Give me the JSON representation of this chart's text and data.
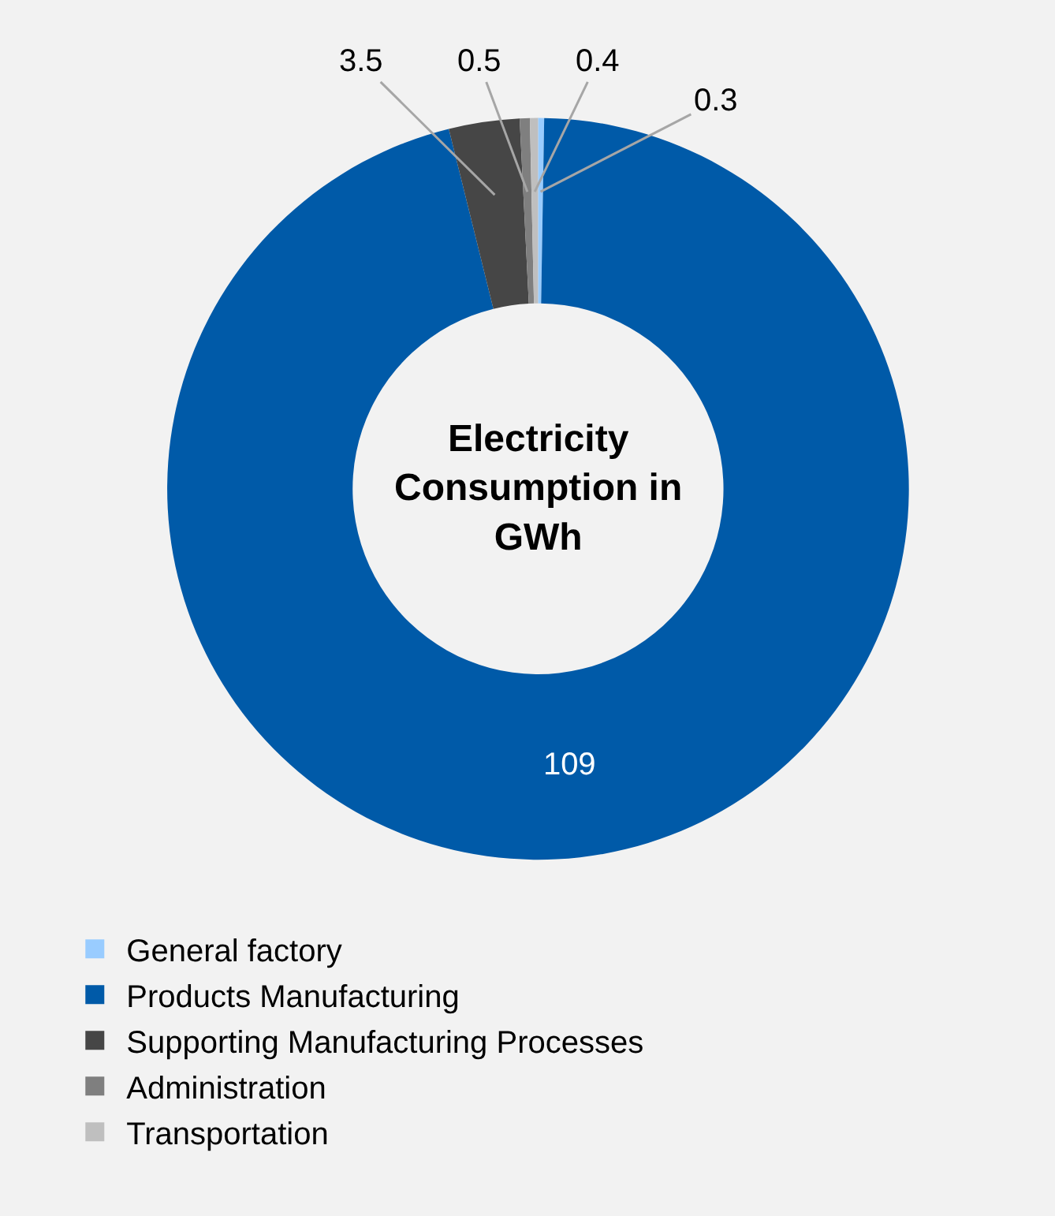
{
  "chart_data": {
    "type": "donut",
    "title": "Electricity Consumption in GWh",
    "categories": [
      "General factory",
      "Products Manufacturing",
      "Supporting Manufacturing Processes",
      "Administration",
      "Transportation"
    ],
    "values": [
      0.3,
      109,
      3.5,
      0.5,
      0.4
    ],
    "colors": [
      "#99ccff",
      "#005aa8",
      "#464646",
      "#7f7f7f",
      "#bfbfbf"
    ],
    "data_labels": true,
    "legend": "bottom left"
  }
}
